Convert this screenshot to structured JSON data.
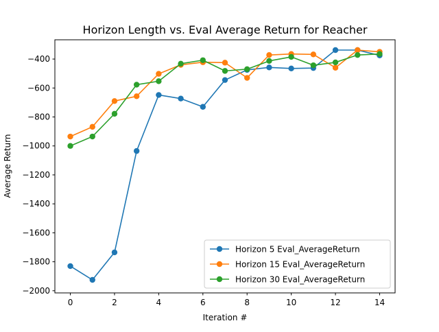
{
  "chart_data": {
    "type": "line",
    "title": "Horizon Length vs. Eval Average Return for Reacher",
    "xlabel": "Iteration #",
    "ylabel": "Average Return",
    "xlim": [
      -0.7,
      14.7
    ],
    "ylim": [
      -2015,
      -267
    ],
    "xticks": [
      0,
      2,
      4,
      6,
      8,
      10,
      12,
      14
    ],
    "yticks": [
      -2000,
      -1800,
      -1600,
      -1400,
      -1200,
      -1000,
      -800,
      -600,
      -400
    ],
    "grid": false,
    "legend_position": "lower-right",
    "x": [
      0,
      1,
      2,
      3,
      4,
      5,
      6,
      7,
      8,
      9,
      10,
      11,
      12,
      13,
      14
    ],
    "series": [
      {
        "name": "Horizon 5 Eval_AverageReturn",
        "color": "#1f77b4",
        "values": [
          -1830,
          -1925,
          -1735,
          -1035,
          -648,
          -673,
          -730,
          -545,
          -475,
          -458,
          -465,
          -462,
          -338,
          -338,
          -375
        ]
      },
      {
        "name": "Horizon 15 Eval_AverageReturn",
        "color": "#ff7f0e",
        "values": [
          -935,
          -868,
          -690,
          -657,
          -502,
          -440,
          -422,
          -425,
          -530,
          -372,
          -365,
          -368,
          -460,
          -338,
          -350
        ]
      },
      {
        "name": "Horizon 30 Eval_AverageReturn",
        "color": "#2ca02c",
        "values": [
          -1000,
          -935,
          -778,
          -577,
          -553,
          -432,
          -408,
          -482,
          -470,
          -413,
          -385,
          -443,
          -423,
          -372,
          -365
        ]
      }
    ]
  }
}
